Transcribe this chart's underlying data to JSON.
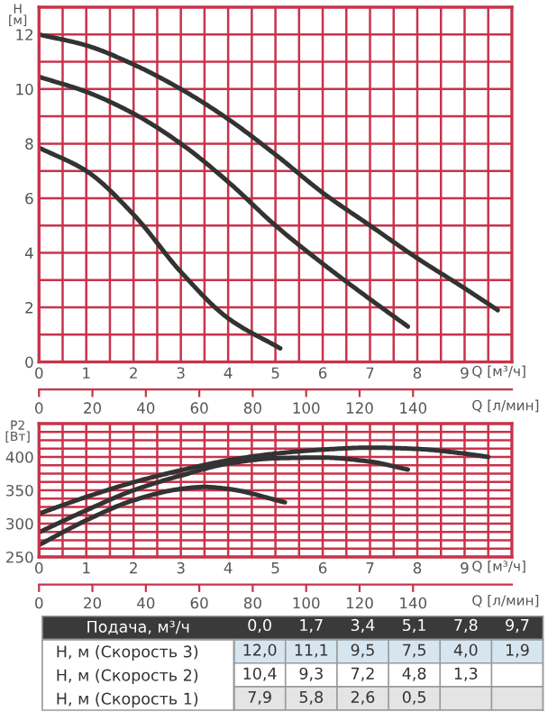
{
  "chart_data": [
    {
      "type": "line",
      "ylabel": "H\n[м]",
      "xlabel": "Q [м³/ч]",
      "x2label": "Q [л/мин]",
      "xlim": [
        0,
        10
      ],
      "ylim": [
        0,
        13
      ],
      "xticks": [
        0,
        {
          "value": 0.5,
          "label": null
        },
        1,
        {
          "value": 1.5,
          "label": null
        },
        2,
        {
          "value": 2.5,
          "label": null
        },
        3,
        {
          "value": 3.5,
          "label": null
        },
        4,
        {
          "value": 4.5,
          "label": null
        },
        5,
        {
          "value": 5.5,
          "label": null
        },
        6,
        {
          "value": 6.5,
          "label": null
        },
        7,
        {
          "value": 7.5,
          "label": null
        },
        8,
        {
          "value": 8.5,
          "label": null
        },
        9,
        {
          "value": 9.5,
          "label": null
        }
      ],
      "yticks": [
        0,
        {
          "value": 1,
          "label": null
        },
        2,
        {
          "value": 3,
          "label": null
        },
        4,
        {
          "value": 5,
          "label": null
        },
        6,
        {
          "value": 7,
          "label": null
        },
        8,
        {
          "value": 9,
          "label": null
        },
        10,
        {
          "value": 11,
          "label": null
        },
        12
      ],
      "x2lim": [
        0,
        177
      ],
      "x2ticks": [
        0,
        20,
        40,
        60,
        80,
        100,
        120,
        140
      ],
      "grid": true,
      "marker": "none",
      "line_style": "solid",
      "series": [
        {
          "color": "#333333",
          "x": [
            0,
            1,
            2,
            3,
            4,
            5,
            6,
            7,
            8,
            9,
            9.7
          ],
          "values": [
            12,
            11.6,
            10.9,
            10,
            8.9,
            7.6,
            6.2,
            5,
            3.8,
            2.7,
            1.9
          ]
        },
        {
          "color": "#333333",
          "x": [
            0,
            1,
            2,
            3,
            4,
            5,
            6,
            7,
            7.8
          ],
          "values": [
            10.45,
            9.9,
            9.1,
            8,
            6.6,
            5,
            3.6,
            2.3,
            1.3
          ]
        },
        {
          "color": "#333333",
          "x": [
            0,
            1,
            2,
            3,
            4,
            5.1
          ],
          "values": [
            7.85,
            7,
            5.4,
            3.3,
            1.6,
            0.5
          ]
        }
      ]
    },
    {
      "type": "line",
      "ylabel": "P2\n[Вт]",
      "xlabel": "Q [м³/ч]",
      "x2label": "Q [л/мин]",
      "xlim": [
        0,
        10
      ],
      "ylim": [
        250,
        450
      ],
      "xticks": [
        0,
        {
          "value": 0.5,
          "label": null
        },
        1,
        {
          "value": 1.5,
          "label": null
        },
        2,
        {
          "value": 2.5,
          "label": null
        },
        3,
        {
          "value": 3.5,
          "label": null
        },
        4,
        {
          "value": 4.5,
          "label": null
        },
        5,
        {
          "value": 5.5,
          "label": null
        },
        6,
        {
          "value": 6.5,
          "label": null
        },
        7,
        {
          "value": 7.5,
          "label": null
        },
        8,
        {
          "value": 8.5,
          "label": null
        },
        9,
        {
          "value": 9.5,
          "label": null
        }
      ],
      "yticks": [
        250,
        {
          "value": 262.5,
          "label": null
        },
        {
          "value": 275,
          "label": null
        },
        {
          "value": 287.5,
          "label": null
        },
        300,
        {
          "value": 312.5,
          "label": null
        },
        {
          "value": 325,
          "label": null
        },
        {
          "value": 337.5,
          "label": null
        },
        350,
        {
          "value": 362.5,
          "label": null
        },
        {
          "value": 375,
          "label": null
        },
        {
          "value": 387.5,
          "label": null
        },
        400,
        {
          "value": 412.5,
          "label": null
        },
        {
          "value": 425,
          "label": null
        },
        {
          "value": 437.5,
          "label": null
        }
      ],
      "x2lim": [
        0,
        177
      ],
      "x2ticks": [
        0,
        20,
        40,
        60,
        80,
        100,
        120,
        140
      ],
      "grid": true,
      "marker": "none",
      "line_style": "solid",
      "series": [
        {
          "color": "#333333",
          "x": [
            0,
            1,
            2,
            3,
            4,
            5,
            6,
            7,
            8,
            9,
            9.5
          ],
          "values": [
            315,
            340,
            362,
            380,
            395,
            405,
            411,
            414,
            412,
            405,
            400
          ]
        },
        {
          "color": "#333333",
          "x": [
            0,
            1,
            2,
            3,
            4,
            5,
            6,
            7,
            7.8
          ],
          "values": [
            287,
            320,
            350,
            372,
            390,
            398,
            399,
            393,
            381
          ]
        },
        {
          "color": "#333333",
          "x": [
            0,
            1,
            2,
            3,
            3.5,
            4,
            5.2
          ],
          "values": [
            268,
            305,
            335,
            352,
            355,
            352,
            332
          ]
        }
      ]
    },
    {
      "type": "heatmap",
      "xlabel": "Подача, м³/ч",
      "categories": [
        "0,0",
        "1,7",
        "3,4",
        "5,1",
        "7,8",
        "9,7"
      ],
      "y_categories": [
        "Н, м (Скорость 3)",
        "Н, м (Скорость 2)",
        "Н, м (Скорость 1)"
      ],
      "cells": [
        [
          12.0,
          11.1,
          9.5,
          7.5,
          4.0,
          1.9
        ],
        [
          10.4,
          9.3,
          7.2,
          4.8,
          1.3,
          null
        ],
        [
          7.9,
          5.8,
          2.6,
          0.5,
          null,
          null
        ]
      ],
      "cell_labels": [
        [
          "12,0",
          "11,1",
          "9,5",
          "7,5",
          "4,0",
          "1,9"
        ],
        [
          "10,4",
          "9,3",
          "7,2",
          "4,8",
          "1,3",
          null
        ],
        [
          "7,9",
          "5,8",
          "2,6",
          "0,5",
          null,
          null
        ]
      ]
    }
  ]
}
